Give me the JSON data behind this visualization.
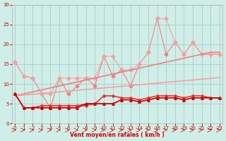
{
  "title": "",
  "xlabel": "Vent moyen/en rafales ( km/h )",
  "ylabel": "",
  "background_color": "#d0eee8",
  "grid_color": "#b0d0cc",
  "x_data": [
    0,
    1,
    2,
    3,
    4,
    5,
    6,
    7,
    8,
    9,
    10,
    11,
    12,
    13,
    14,
    15,
    16,
    17,
    18,
    19,
    20,
    21,
    22,
    23
  ],
  "line1": [
    15.5,
    12.0,
    11.5,
    7.5,
    4.0,
    11.5,
    7.5,
    9.5,
    11.5,
    9.5,
    17.0,
    12.0,
    13.5,
    9.5,
    15.0,
    18.0,
    26.5,
    17.5,
    20.5,
    17.5,
    20.5,
    17.5,
    17.5,
    17.5
  ],
  "line2": [
    15.5,
    12.0,
    11.5,
    7.5,
    7.5,
    11.5,
    11.5,
    11.5,
    11.5,
    11.5,
    17.0,
    17.0,
    13.5,
    13.5,
    15.0,
    18.0,
    26.5,
    26.5,
    20.5,
    17.5,
    20.5,
    17.5,
    17.5,
    17.5
  ],
  "line3": [
    null,
    null,
    null,
    null,
    null,
    null,
    null,
    null,
    null,
    null,
    null,
    null,
    null,
    null,
    null,
    null,
    null,
    null,
    null,
    null,
    null,
    null,
    null,
    null
  ],
  "trend1": [
    7.0,
    7.5,
    8.0,
    8.5,
    9.0,
    9.5,
    10.0,
    10.5,
    11.0,
    11.5,
    12.0,
    12.5,
    13.0,
    13.5,
    14.0,
    14.5,
    15.0,
    15.5,
    16.0,
    16.5,
    17.0,
    17.5,
    18.0,
    18.0
  ],
  "trend2": [
    7.0,
    7.2,
    7.4,
    7.6,
    7.8,
    8.0,
    8.2,
    8.4,
    8.6,
    8.8,
    9.0,
    9.2,
    9.4,
    9.6,
    9.8,
    10.0,
    10.2,
    10.4,
    10.6,
    10.8,
    11.0,
    11.2,
    11.4,
    11.6
  ],
  "red_bottom1": [
    7.5,
    4.0,
    4.0,
    4.5,
    4.5,
    4.5,
    4.5,
    4.5,
    4.5,
    5.0,
    7.0,
    7.0,
    6.5,
    6.5,
    6.0,
    6.5,
    7.0,
    7.0,
    7.0,
    6.5,
    7.0,
    7.0,
    6.5,
    6.5
  ],
  "red_bottom2": [
    7.5,
    4.0,
    4.0,
    4.5,
    4.5,
    4.5,
    4.5,
    4.5,
    5.0,
    5.0,
    7.0,
    7.0,
    6.5,
    6.5,
    6.0,
    6.5,
    7.0,
    7.0,
    7.0,
    6.5,
    7.0,
    7.0,
    6.5,
    6.5
  ],
  "dark_red1": [
    7.5,
    4.0,
    4.0,
    4.0,
    4.0,
    4.0,
    4.0,
    4.0,
    5.0,
    5.0,
    5.0,
    5.0,
    6.0,
    6.0,
    5.5,
    6.0,
    6.5,
    6.5,
    6.5,
    6.0,
    6.5,
    6.5,
    6.5,
    6.5
  ],
  "dark_red2": [
    7.5,
    4.0,
    4.0,
    4.0,
    4.0,
    4.0,
    4.0,
    4.0,
    5.0,
    5.0,
    5.0,
    5.0,
    6.0,
    6.0,
    5.5,
    6.0,
    6.5,
    6.5,
    6.5,
    6.0,
    6.5,
    6.5,
    6.5,
    6.5
  ],
  "ylim": [
    0,
    30
  ],
  "xlim": [
    0,
    23
  ],
  "yticks": [
    0,
    5,
    10,
    15,
    20,
    25,
    30
  ],
  "xticks": [
    0,
    1,
    2,
    3,
    4,
    5,
    6,
    7,
    8,
    9,
    10,
    11,
    12,
    13,
    14,
    15,
    16,
    17,
    18,
    19,
    20,
    21,
    22,
    23
  ]
}
